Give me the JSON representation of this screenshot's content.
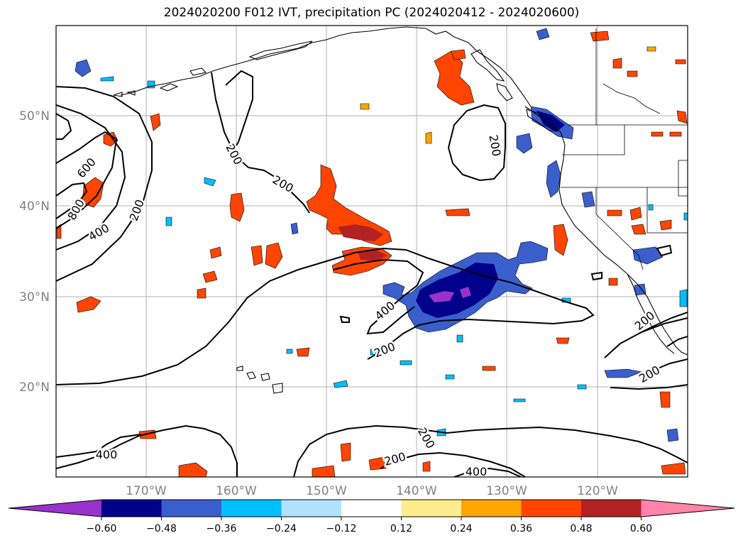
{
  "title": "2024020200 F012 IVT, precipitation PC (2024020412 - 2024020600)",
  "map": {
    "lat_labels": [
      "50°N",
      "40°N",
      "30°N",
      "20°N"
    ],
    "lon_labels": [
      "170°W",
      "160°W",
      "150°W",
      "140°W",
      "130°W",
      "120°W"
    ],
    "contour_labels": {
      "c200_a": "200",
      "c200_b": "200",
      "c200_c": "200",
      "c200_d": "200",
      "c200_e": "200",
      "c200_f": "200",
      "c200_g": "200",
      "c200_h": "200",
      "c400_a": "400",
      "c400_b": "400",
      "c400_c": "400",
      "c400_d": "400",
      "c600": "600",
      "c800": "800"
    }
  },
  "colorbar": {
    "ticks": [
      "−0.60",
      "−0.48",
      "−0.36",
      "−0.24",
      "−0.12",
      "0.12",
      "0.24",
      "0.36",
      "0.48",
      "0.60"
    ],
    "colors": [
      "#9932cc",
      "#00008b",
      "#3a5fcd",
      "#00bfff",
      "#b0e2ff",
      "#ffffff",
      "#ffec8b",
      "#ffa500",
      "#ff4500",
      "#b22222",
      "#ff83aa"
    ]
  },
  "shade_colors": {
    "pos_outer": "#ffec8b",
    "pos_mid": "#ffa500",
    "pos_main": "#ff4500",
    "pos_high": "#b22222",
    "neg_outer": "#b0e2ff",
    "neg_mid": "#00bfff",
    "neg_main": "#3a5fcd",
    "neg_high": "#00008b",
    "neg_max": "#9932cc"
  }
}
